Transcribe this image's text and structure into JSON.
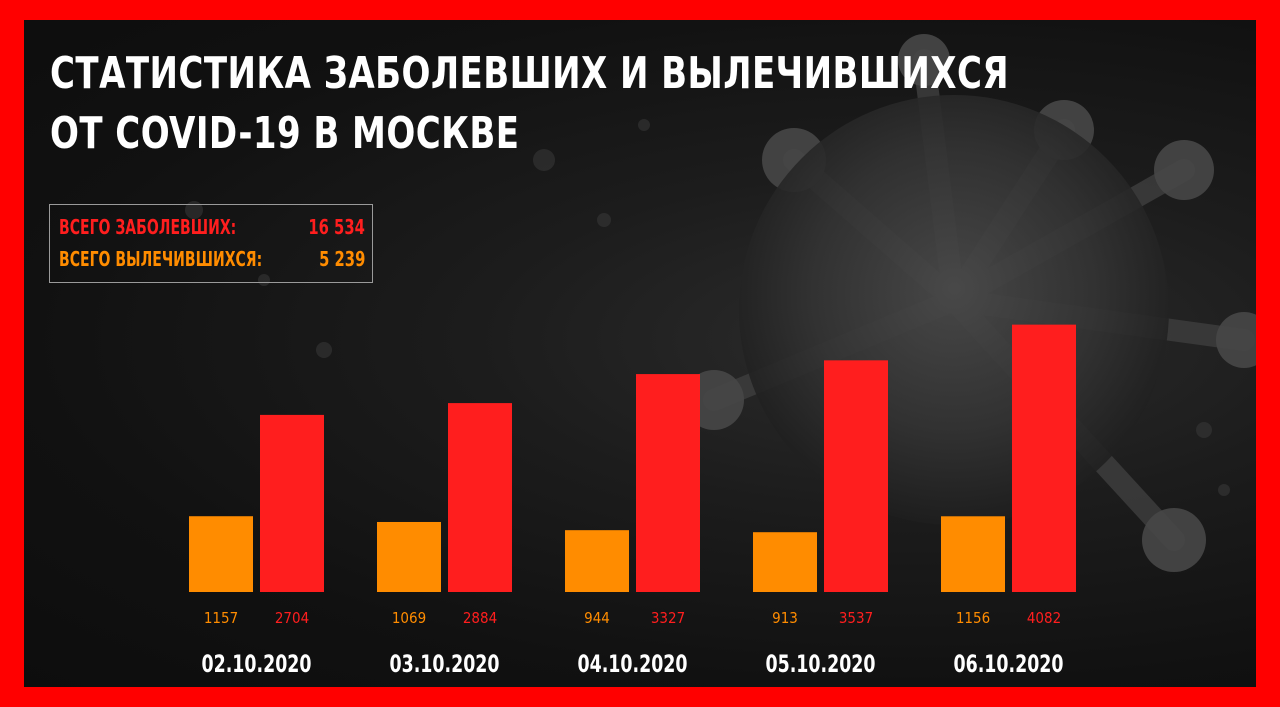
{
  "title": {
    "line1": "СТАТИСТИКА ЗАБОЛЕВШИХ И ВЫЛЕЧИВШИХСЯ",
    "line2": "ОТ COVID-19 В МОСКВЕ"
  },
  "totals": {
    "cases_label": "ВСЕГО ЗАБОЛЕВШИХ:",
    "cases_value": "16 534",
    "recovered_label": "ВСЕГО ВЫЛЕЧИВШИХСЯ:",
    "recovered_value": "5 239"
  },
  "colors": {
    "frame": "#ff0000",
    "background": "#141414",
    "recovered": "#ff8c00",
    "cases": "#ff1e1e",
    "title": "#ffffff"
  },
  "chart_data": {
    "type": "bar",
    "categories": [
      "02.10.2020",
      "03.10.2020",
      "04.10.2020",
      "05.10.2020",
      "06.10.2020"
    ],
    "series": [
      {
        "key": "recovered",
        "values": [
          1157,
          1069,
          944,
          913,
          1156
        ]
      },
      {
        "key": "cases",
        "values": [
          2704,
          2884,
          3327,
          3537,
          4082
        ]
      }
    ],
    "ylim": [
      0,
      4500
    ],
    "grid": false,
    "legend": "none"
  }
}
